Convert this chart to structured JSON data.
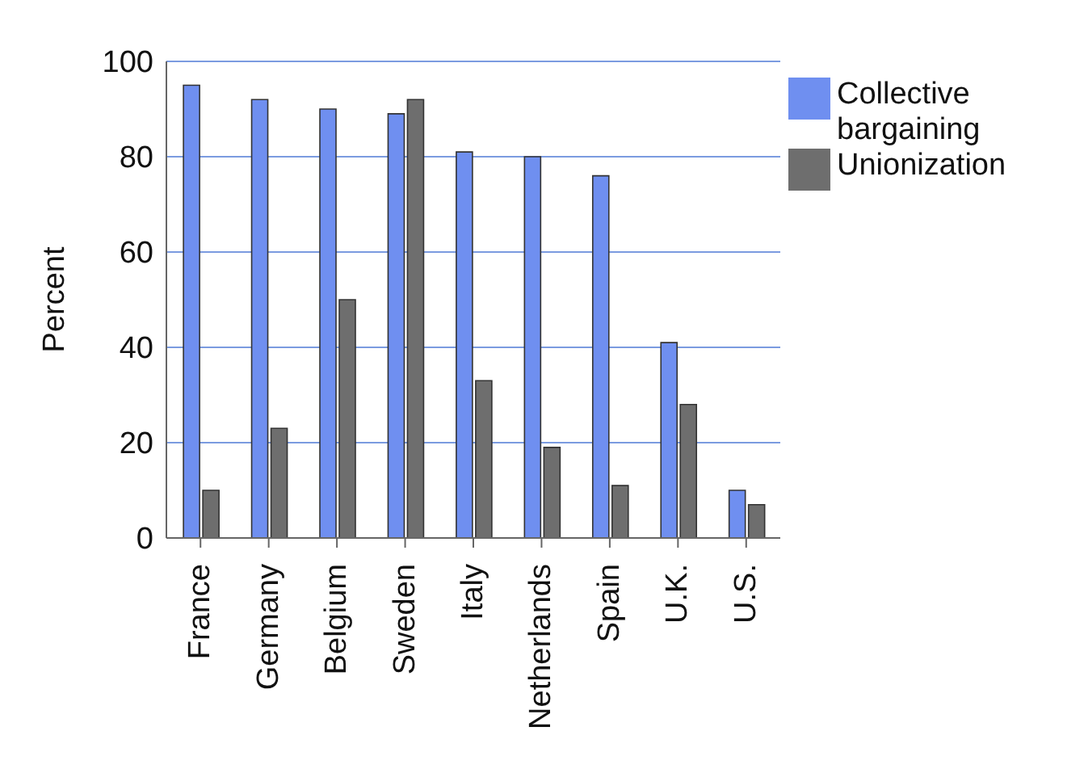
{
  "chart_data": {
    "type": "bar",
    "ylabel": "Percent",
    "categories": [
      "France",
      "Germany",
      "Belgium",
      "Sweden",
      "Italy",
      "Netherlands",
      "Spain",
      "U.K.",
      "U.S."
    ],
    "series": [
      {
        "name": "Collective bargaining",
        "color": "#6f8ff0",
        "values": [
          95,
          92,
          90,
          89,
          81,
          80,
          76,
          41,
          10
        ]
      },
      {
        "name": "Unionization",
        "color": "#6e6e6e",
        "values": [
          10,
          23,
          50,
          92,
          33,
          19,
          11,
          28,
          7
        ]
      }
    ],
    "ylim": [
      0,
      100
    ],
    "yticks": [
      0,
      20,
      40,
      60,
      80,
      100
    ],
    "grid": "y",
    "legend": "top right"
  }
}
